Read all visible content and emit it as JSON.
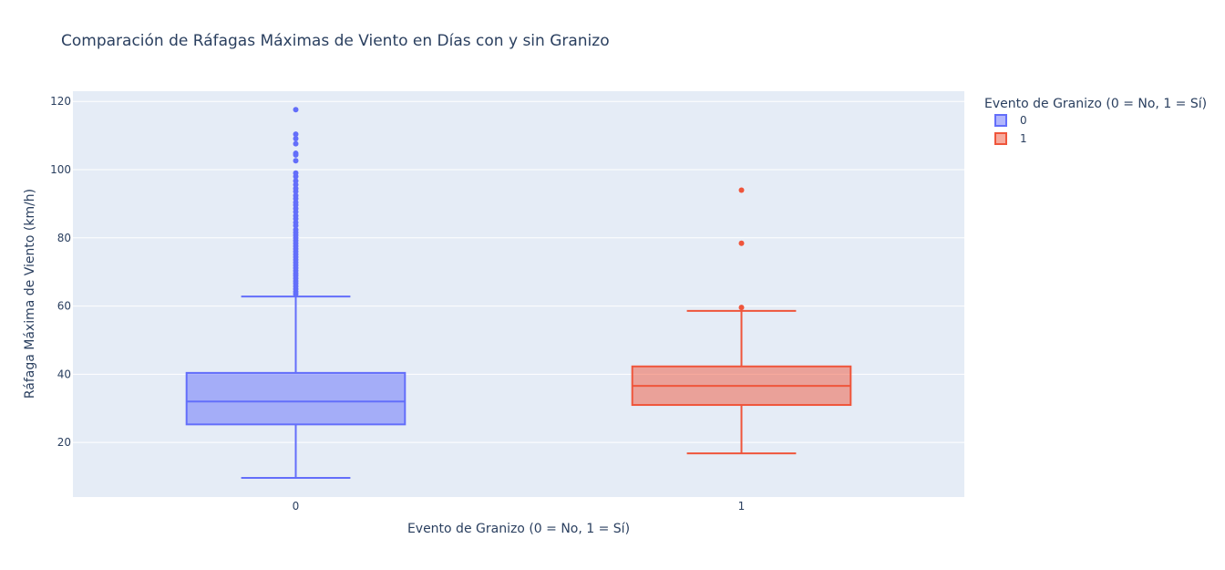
{
  "chart_data": {
    "type": "box",
    "title": "Comparación de Ráfagas Máximas de Viento en Días con y sin Granizo",
    "xlabel": "Evento de Granizo (0 = No, 1 = Sí)",
    "ylabel": "Ráfaga Máxima de Viento (km/h)",
    "ylim": [
      4,
      123
    ],
    "yticks": [
      20,
      40,
      60,
      80,
      100,
      120
    ],
    "categories": [
      "0",
      "1"
    ],
    "grid": true,
    "legend": {
      "title": "Evento de Granizo (0 = No, 1 = Sí)",
      "placement": "right",
      "entries": [
        "0",
        "1"
      ]
    },
    "series": [
      {
        "name": "0",
        "color": "#636efa",
        "fill": "rgba(99,110,250,0.5)",
        "lowerfence": 9.6,
        "q1": 25.3,
        "median": 32.0,
        "q3": 40.4,
        "upperfence": 62.8,
        "outliers": [
          63.5,
          64.2,
          65.0,
          65.8,
          66.6,
          67.3,
          68.1,
          68.9,
          69.6,
          70.4,
          71.2,
          72.0,
          72.8,
          73.6,
          74.4,
          75.2,
          76.0,
          76.8,
          77.6,
          78.4,
          79.2,
          80.0,
          80.8,
          81.6,
          82.4,
          83.6,
          84.5,
          85.6,
          86.5,
          87.6,
          88.6,
          89.6,
          90.4,
          91.5,
          92.4,
          93.6,
          94.5,
          95.6,
          96.7,
          98.0,
          99.0,
          102.6,
          104.3,
          104.8,
          107.6,
          109.1,
          110.4,
          117.6
        ]
      },
      {
        "name": "1",
        "color": "#ef553b",
        "fill": "rgba(239,85,59,0.5)",
        "lowerfence": 16.8,
        "q1": 31.0,
        "median": 36.6,
        "q3": 42.3,
        "upperfence": 58.6,
        "outliers": [
          59.6,
          78.4,
          94.0
        ]
      }
    ]
  }
}
